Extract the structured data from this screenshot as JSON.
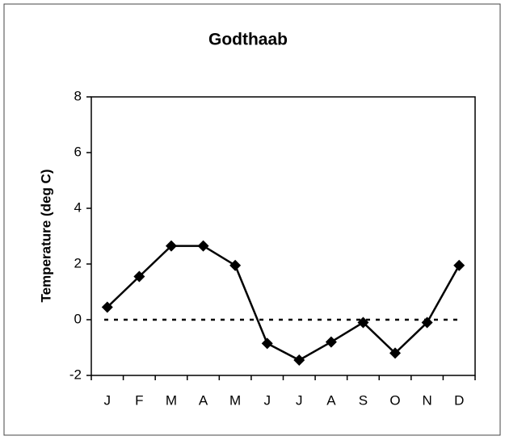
{
  "chart_data": {
    "type": "line",
    "title": "Godthaab",
    "y_label": "Temperature (deg C)",
    "categories": [
      "J",
      "F",
      "M",
      "A",
      "M",
      "J",
      "J",
      "A",
      "S",
      "O",
      "N",
      "D"
    ],
    "values": [
      0.45,
      1.55,
      2.65,
      2.65,
      1.95,
      -0.85,
      -1.45,
      -0.8,
      -0.1,
      -1.2,
      -0.1,
      1.95
    ],
    "color": "#000000",
    "ylim": [
      -2,
      8
    ],
    "yticks": [
      -2,
      0,
      2,
      4,
      6,
      8
    ],
    "reference_line": 0,
    "grid": false
  }
}
